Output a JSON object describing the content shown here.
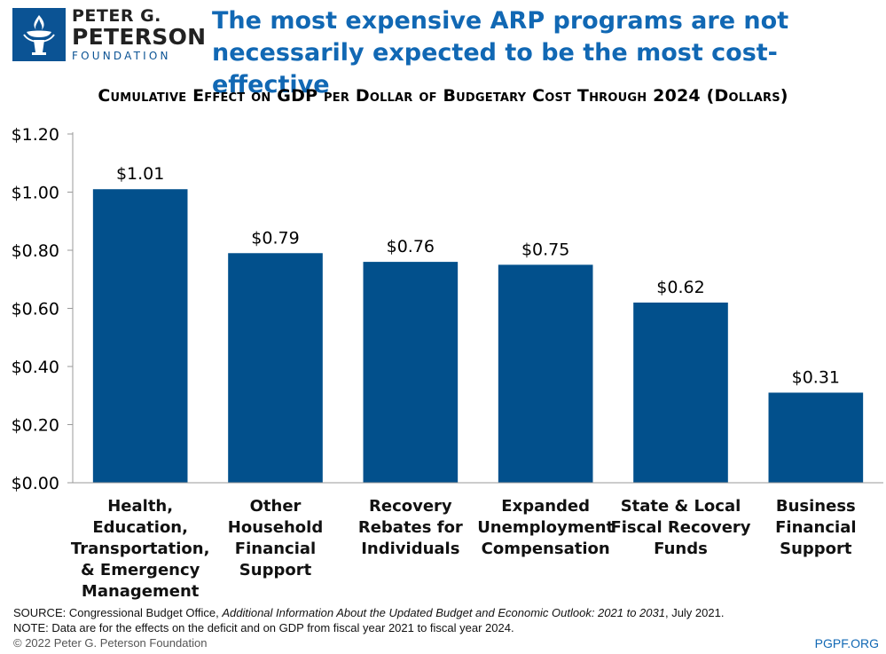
{
  "logo": {
    "line1": "PETER G.",
    "line2": "PETERSON",
    "line3": "FOUNDATION",
    "brand_color": "#0b5394"
  },
  "headline": "The most expensive ARP programs are not necessarily expected to be the most cost-effective",
  "chart_data": {
    "type": "bar",
    "title": "Cumulative Effect on GDP per Dollar of Budgetary Cost Through 2024 (Dollars)",
    "categories": [
      [
        "Health,",
        "Education,",
        "Transportation,",
        "& Emergency",
        "Management"
      ],
      [
        "Other",
        "Household",
        "Financial",
        "Support"
      ],
      [
        "Recovery",
        "Rebates for",
        "Individuals"
      ],
      [
        "Expanded",
        "Unemployment",
        "Compensation"
      ],
      [
        "State & Local",
        "Fiscal Recovery",
        "Funds"
      ],
      [
        "Business",
        "Financial",
        "Support"
      ]
    ],
    "values": [
      1.01,
      0.79,
      0.76,
      0.75,
      0.62,
      0.31
    ],
    "data_labels": [
      "$1.01",
      "$0.79",
      "$0.76",
      "$0.75",
      "$0.62",
      "$0.31"
    ],
    "ylim": [
      0,
      1.2
    ],
    "yticks": [
      "$0.00",
      "$0.20",
      "$0.40",
      "$0.60",
      "$0.80",
      "$1.00",
      "$1.20"
    ],
    "ytick_values": [
      0,
      0.2,
      0.4,
      0.6,
      0.8,
      1.0,
      1.2
    ],
    "xlabel": "",
    "ylabel": "",
    "grid": false,
    "bar_color": "#02508c"
  },
  "footer": {
    "source_prefix": "SOURCE: Congressional Budget Office, ",
    "source_italic": "Additional Information About the Updated Budget and Economic Outlook: 2021 to 2031",
    "source_suffix": ", July 2021.",
    "note": "NOTE: Data are for the effects on the deficit and on GDP from fiscal year 2021 to fiscal year 2024.",
    "copyright": "© 2022 Peter G. Peterson Foundation",
    "site": "PGPF.ORG"
  }
}
